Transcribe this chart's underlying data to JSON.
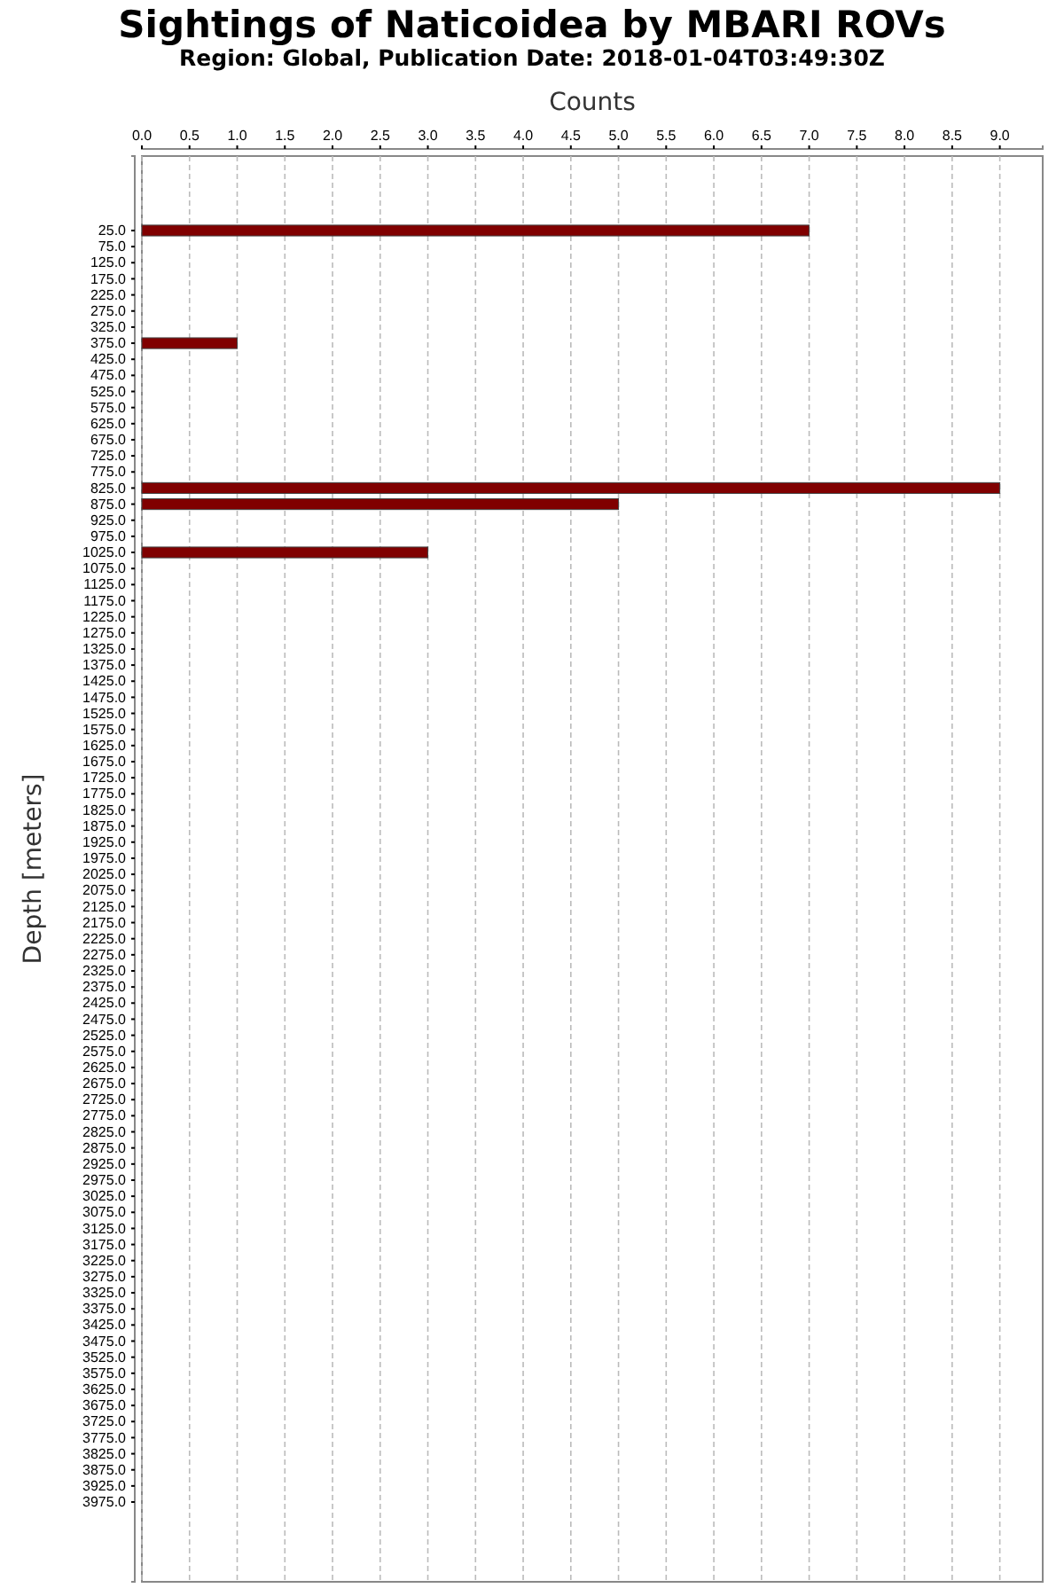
{
  "chart_data": {
    "type": "bar",
    "orientation": "horizontal",
    "title": "Sightings of Naticoidea by MBARI ROVs",
    "subtitle": "Region: Global, Publication Date: 2018-01-04T03:49:30Z",
    "xlabel": "Counts",
    "ylabel": "Depth [meters]",
    "categories": [
      "25.0",
      "75.0",
      "125.0",
      "175.0",
      "225.0",
      "275.0",
      "325.0",
      "375.0",
      "425.0",
      "475.0",
      "525.0",
      "575.0",
      "625.0",
      "675.0",
      "725.0",
      "775.0",
      "825.0",
      "875.0",
      "925.0",
      "975.0",
      "1025.0",
      "1075.0",
      "1125.0",
      "1175.0",
      "1225.0",
      "1275.0",
      "1325.0",
      "1375.0",
      "1425.0",
      "1475.0",
      "1525.0",
      "1575.0",
      "1625.0",
      "1675.0",
      "1725.0",
      "1775.0",
      "1825.0",
      "1875.0",
      "1925.0",
      "1975.0",
      "2025.0",
      "2075.0",
      "2125.0",
      "2175.0",
      "2225.0",
      "2275.0",
      "2325.0",
      "2375.0",
      "2425.0",
      "2475.0",
      "2525.0",
      "2575.0",
      "2625.0",
      "2675.0",
      "2725.0",
      "2775.0",
      "2825.0",
      "2875.0",
      "2925.0",
      "2975.0",
      "3025.0",
      "3075.0",
      "3125.0",
      "3175.0",
      "3225.0",
      "3275.0",
      "3325.0",
      "3375.0",
      "3425.0",
      "3475.0",
      "3525.0",
      "3575.0",
      "3625.0",
      "3675.0",
      "3725.0",
      "3775.0",
      "3825.0",
      "3875.0",
      "3925.0",
      "3975.0"
    ],
    "values": [
      7,
      0,
      0,
      0,
      0,
      0,
      0,
      1,
      0,
      0,
      0,
      0,
      0,
      0,
      0,
      0,
      9,
      5,
      0,
      0,
      3,
      0,
      0,
      0,
      0,
      0,
      0,
      0,
      0,
      0,
      0,
      0,
      0,
      0,
      0,
      0,
      0,
      0,
      0,
      0,
      0,
      0,
      0,
      0,
      0,
      0,
      0,
      0,
      0,
      0,
      0,
      0,
      0,
      0,
      0,
      0,
      0,
      0,
      0,
      0,
      0,
      0,
      0,
      0,
      0,
      0,
      0,
      0,
      0,
      0,
      0,
      0,
      0,
      0,
      0,
      0,
      0,
      0,
      0,
      0
    ],
    "color": "#800000",
    "xlim": [
      0,
      9.45
    ],
    "xticks": [
      {
        "value": 0,
        "label": "0.0"
      },
      {
        "value": 0.5,
        "label": "0.5"
      },
      {
        "value": 1,
        "label": "1.0"
      },
      {
        "value": 1.5,
        "label": "1.5"
      },
      {
        "value": 2,
        "label": "2.0"
      },
      {
        "value": 2.5,
        "label": "2.5"
      },
      {
        "value": 3,
        "label": "3.0"
      },
      {
        "value": 3.5,
        "label": "3.5"
      },
      {
        "value": 4,
        "label": "4.0"
      },
      {
        "value": 4.5,
        "label": "4.5"
      },
      {
        "value": 5,
        "label": "5.0"
      },
      {
        "value": 5.5,
        "label": "5.5"
      },
      {
        "value": 6,
        "label": "6.0"
      },
      {
        "value": 6.5,
        "label": "6.5"
      },
      {
        "value": 7,
        "label": "7.0"
      },
      {
        "value": 7.5,
        "label": "7.5"
      },
      {
        "value": 8,
        "label": "8.0"
      },
      {
        "value": 8.5,
        "label": "8.5"
      },
      {
        "value": 9,
        "label": "9.0"
      }
    ],
    "grid": "x"
  }
}
